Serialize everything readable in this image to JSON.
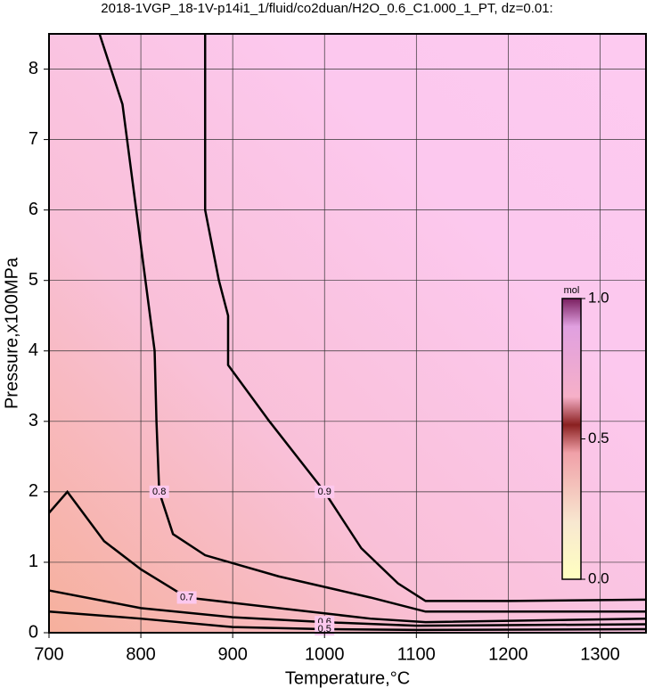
{
  "chart_data": {
    "type": "contour",
    "title": "2018-1VGP_18-1V-p14i1_1/fluid/co2duan/H2O_0.6_C1.000_1_PT, dz=0.01:",
    "x_label": "Temperature,°C",
    "y_label": "Pressure,x100MPa",
    "xlim": [
      700,
      1350
    ],
    "ylim": [
      0,
      8.5
    ],
    "xticks": [
      700,
      800,
      900,
      1000,
      1100,
      1200,
      1300
    ],
    "yticks": [
      0,
      1,
      2,
      3,
      4,
      5,
      6,
      7,
      8
    ],
    "grid": true,
    "contours": [
      {
        "level": 0.9,
        "x": [
          870,
          870,
          885,
          895,
          895,
          940,
          1000,
          1040,
          1080,
          1110,
          1200,
          1350
        ],
        "y": [
          8.5,
          6,
          5,
          4.5,
          3.8,
          3,
          2,
          1.2,
          0.7,
          0.45,
          0.45,
          0.47
        ]
      },
      {
        "level": 0.8,
        "x": [
          755,
          780,
          795,
          805,
          815,
          817,
          820,
          835,
          870,
          950,
          1050,
          1110,
          1350
        ],
        "y": [
          8.5,
          7.5,
          6,
          5,
          4,
          3,
          2,
          1.4,
          1.1,
          0.8,
          0.5,
          0.3,
          0.3
        ]
      },
      {
        "level": 0.7,
        "x": [
          700,
          720,
          760,
          800,
          850,
          950,
          1050,
          1110,
          1350
        ],
        "y": [
          1.7,
          2.0,
          1.3,
          0.9,
          0.5,
          0.35,
          0.2,
          0.15,
          0.2
        ]
      },
      {
        "level": 0.6,
        "x": [
          700,
          800,
          900,
          1000,
          1100,
          1350
        ],
        "y": [
          0.6,
          0.35,
          0.22,
          0.15,
          0.1,
          0.12
        ]
      },
      {
        "level": 0.5,
        "x": [
          700,
          800,
          900,
          1000,
          1100,
          1350
        ],
        "y": [
          0.3,
          0.2,
          0.08,
          0.05,
          0.04,
          0.05
        ]
      }
    ],
    "colorbar": {
      "label": "mol",
      "lim": [
        0,
        1
      ],
      "ticks": [
        {
          "value": 0,
          "label": "0.0"
        },
        {
          "value": 0.5,
          "label": "0.5"
        },
        {
          "value": 1,
          "label": "1.0"
        }
      ]
    }
  }
}
